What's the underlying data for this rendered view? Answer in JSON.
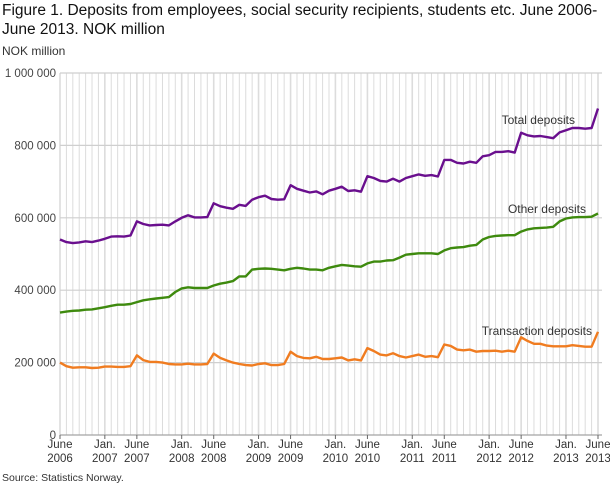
{
  "title": "Figure 1. Deposits from employees, social security recipients, students etc. June 2006-June 2013. NOK million",
  "unit_label": "NOK million",
  "source": "Source: Statistics Norway.",
  "chart_data": {
    "type": "line",
    "title": "Figure 1. Deposits from employees, social security recipients, students etc. June 2006-June 2013. NOK million",
    "ylabel": "NOK million",
    "ylim": [
      0,
      1000000
    ],
    "yticks": [
      0,
      200000,
      400000,
      600000,
      800000,
      1000000
    ],
    "ytick_labels": [
      "0",
      "200 000",
      "400 000",
      "600 000",
      "800 000",
      "1 000 000"
    ],
    "x_start": "2006-06",
    "x_end": "2013-06",
    "x_frequency": "monthly",
    "xtick_labels": [
      {
        "month": "2006-06",
        "line1": "June",
        "line2": "2006"
      },
      {
        "month": "2007-01",
        "line1": "Jan.",
        "line2": "2007"
      },
      {
        "month": "2007-06",
        "line1": "June",
        "line2": "2007"
      },
      {
        "month": "2008-01",
        "line1": "Jan.",
        "line2": "2008"
      },
      {
        "month": "2008-06",
        "line1": "June",
        "line2": "2008"
      },
      {
        "month": "2009-01",
        "line1": "Jan.",
        "line2": "2009"
      },
      {
        "month": "2009-06",
        "line1": "June",
        "line2": "2009"
      },
      {
        "month": "2010-01",
        "line1": "Jan.",
        "line2": "2010"
      },
      {
        "month": "2010-06",
        "line1": "June",
        "line2": "2010"
      },
      {
        "month": "2011-01",
        "line1": "Jan.",
        "line2": "2011"
      },
      {
        "month": "2011-06",
        "line1": "June",
        "line2": "2011"
      },
      {
        "month": "2012-01",
        "line1": "Jan.",
        "line2": "2012"
      },
      {
        "month": "2012-06",
        "line1": "June",
        "line2": "2012"
      },
      {
        "month": "2013-01",
        "line1": "Jan.",
        "line2": "2013"
      },
      {
        "month": "2013-06",
        "line1": "June",
        "line2": "2013"
      }
    ],
    "grid": true,
    "series": [
      {
        "name": "Total deposits",
        "color": "#6a0f8e",
        "unit_scale": 1000,
        "values": [
          540,
          533,
          530,
          532,
          535,
          533,
          537,
          542,
          548,
          549,
          548,
          551,
          590,
          583,
          579,
          580,
          581,
          579,
          590,
          600,
          607,
          601,
          601,
          602,
          640,
          632,
          628,
          625,
          636,
          633,
          650,
          657,
          661,
          652,
          650,
          651,
          690,
          680,
          675,
          670,
          673,
          665,
          675,
          680,
          686,
          674,
          676,
          672,
          715,
          710,
          702,
          700,
          708,
          700,
          710,
          715,
          720,
          716,
          718,
          714,
          760,
          760,
          752,
          750,
          755,
          752,
          770,
          773,
          782,
          782,
          784,
          780,
          835,
          828,
          825,
          826,
          823,
          820,
          836,
          842,
          848,
          848,
          846,
          848,
          902
        ]
      },
      {
        "name": "Other deposits",
        "color": "#3e8a0e",
        "unit_scale": 1000,
        "values": [
          338,
          341,
          343,
          344,
          346,
          347,
          350,
          353,
          357,
          360,
          360,
          362,
          367,
          372,
          375,
          377,
          379,
          381,
          395,
          405,
          408,
          406,
          406,
          406,
          413,
          418,
          421,
          425,
          438,
          438,
          457,
          459,
          460,
          459,
          457,
          455,
          459,
          462,
          460,
          457,
          457,
          455,
          462,
          466,
          470,
          468,
          466,
          465,
          474,
          479,
          479,
          482,
          483,
          490,
          498,
          500,
          502,
          502,
          502,
          500,
          510,
          516,
          518,
          519,
          523,
          525,
          540,
          547,
          550,
          551,
          552,
          552,
          562,
          568,
          571,
          572,
          573,
          575,
          590,
          598,
          601,
          602,
          602,
          603,
          612
        ]
      },
      {
        "name": "Transaction deposits",
        "color": "#f07c20",
        "unit_scale": 1000,
        "values": [
          200,
          190,
          186,
          187,
          187,
          185,
          186,
          189,
          189,
          188,
          188,
          190,
          220,
          207,
          202,
          202,
          200,
          196,
          195,
          195,
          197,
          195,
          195,
          196,
          225,
          213,
          206,
          200,
          196,
          193,
          192,
          196,
          198,
          193,
          193,
          196,
          230,
          218,
          213,
          212,
          216,
          210,
          210,
          212,
          214,
          206,
          209,
          206,
          240,
          232,
          222,
          220,
          226,
          218,
          214,
          218,
          222,
          216,
          218,
          215,
          250,
          246,
          236,
          234,
          236,
          230,
          232,
          232,
          233,
          230,
          233,
          230,
          270,
          260,
          252,
          252,
          247,
          245,
          245,
          245,
          248,
          246,
          244,
          244,
          285
        ]
      }
    ]
  }
}
